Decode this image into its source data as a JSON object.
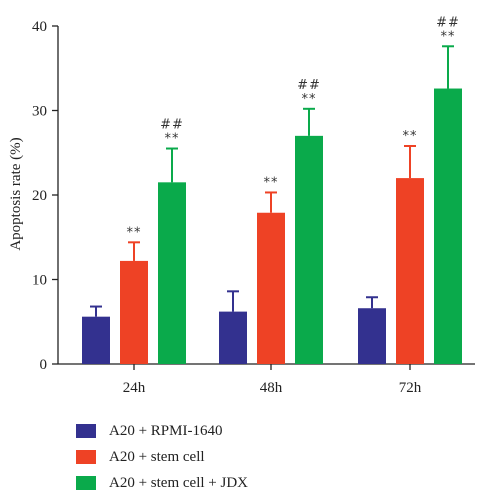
{
  "chart_data": {
    "type": "bar",
    "title": "",
    "xlabel": "",
    "ylabel": "Apoptosis rate (%)",
    "ylim": [
      0,
      40
    ],
    "yticks": [
      0,
      10,
      20,
      30,
      40
    ],
    "categories": [
      "24h",
      "48h",
      "72h"
    ],
    "grid": false,
    "legend_position": "bottom",
    "series": [
      {
        "name": "A20 + RPMI-1640",
        "color": "#33318f",
        "values": [
          5.6,
          6.2,
          6.6
        ],
        "errors": [
          1.2,
          2.4,
          1.3
        ],
        "annotations": [
          "",
          "",
          ""
        ]
      },
      {
        "name": "A20 + stem cell",
        "color": "#ee4225",
        "values": [
          12.2,
          17.9,
          22.0
        ],
        "errors": [
          2.2,
          2.4,
          3.8
        ],
        "annotations": [
          "**",
          "**",
          "**"
        ]
      },
      {
        "name": "A20 + stem cell + JDX",
        "color": "#0aaa4b",
        "values": [
          21.5,
          27.0,
          32.6
        ],
        "errors": [
          4.0,
          3.2,
          5.0
        ],
        "annotations": [
          "## **",
          "## **",
          "## **"
        ]
      }
    ]
  }
}
